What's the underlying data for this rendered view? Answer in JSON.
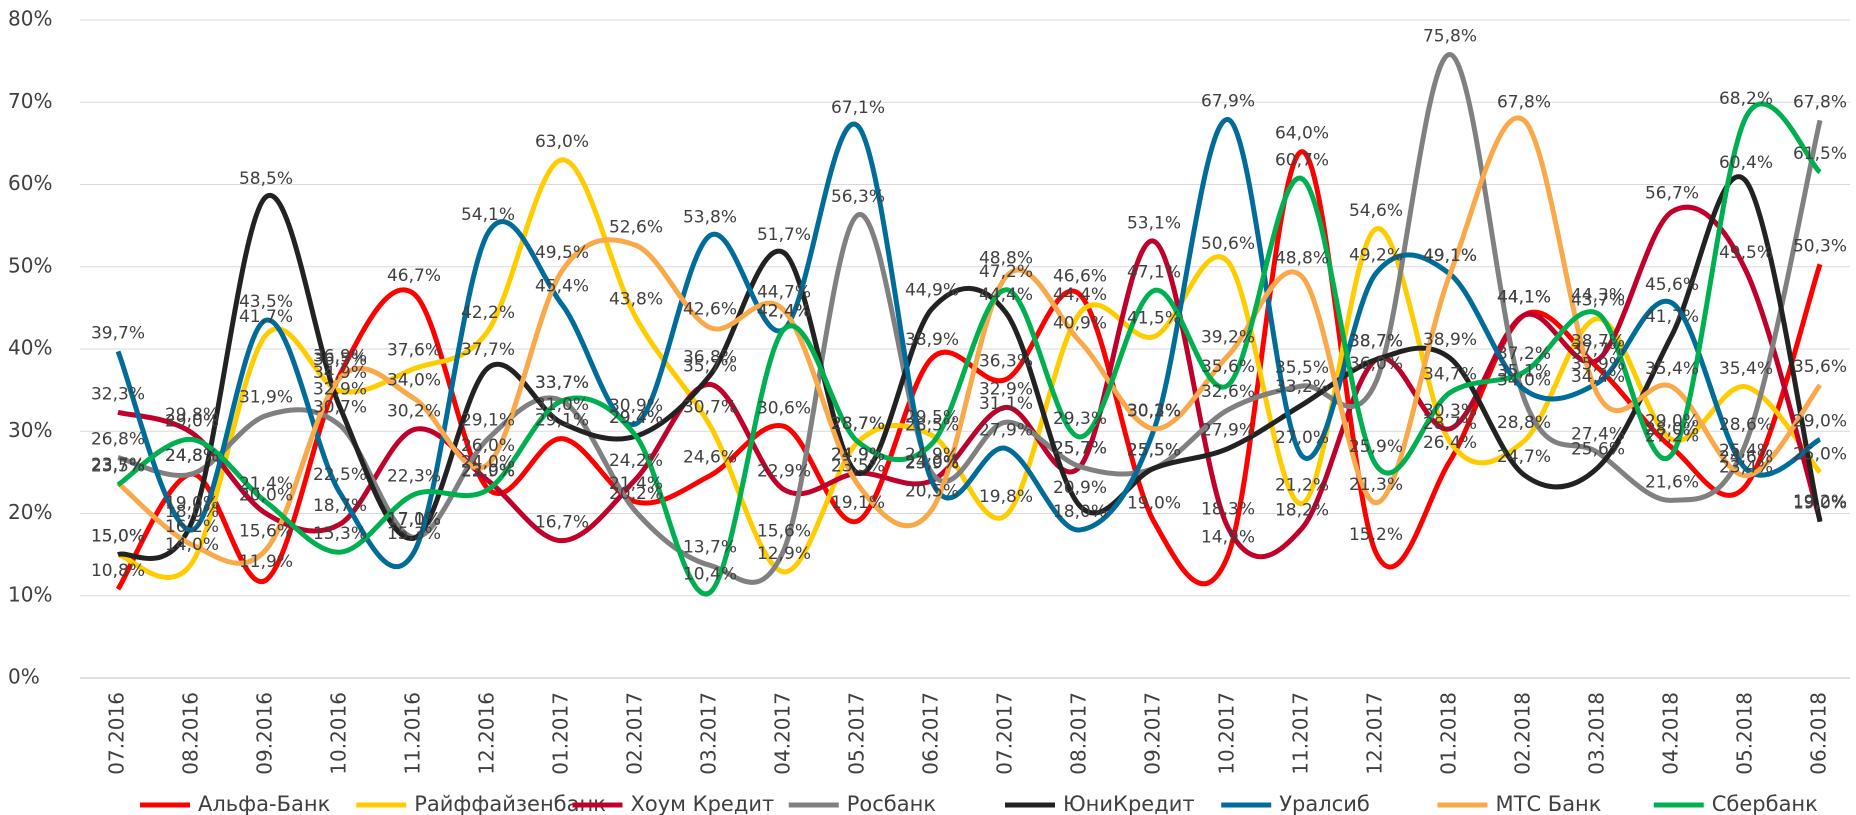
{
  "chart_data": {
    "type": "line",
    "categories": [
      "07.2016",
      "08.2016",
      "09.2016",
      "10.2016",
      "11.2016",
      "12.2016",
      "01.2017",
      "02.2017",
      "03.2017",
      "04.2017",
      "05.2017",
      "06.2017",
      "07.2017",
      "08.2017",
      "09.2017",
      "10.2017",
      "11.2017",
      "12.2017",
      "01.2018",
      "02.2018",
      "03.2018",
      "04.2018",
      "05.2018",
      "06.2018"
    ],
    "ylim": [
      0,
      80
    ],
    "yticks": [
      {
        "value": 0,
        "label": "0%"
      },
      {
        "value": 10,
        "label": "10%"
      },
      {
        "value": 20,
        "label": "20%"
      },
      {
        "value": 30,
        "label": "30%"
      },
      {
        "value": 40,
        "label": "40%"
      },
      {
        "value": 50,
        "label": "50%"
      },
      {
        "value": 60,
        "label": "60%"
      },
      {
        "value": 70,
        "label": "70%"
      },
      {
        "value": 80,
        "label": "80%"
      }
    ],
    "grid": true,
    "legend": "bottom",
    "series": [
      {
        "name": "Альфа-Банк",
        "color": "#ff0000",
        "values": [
          10.8,
          24.8,
          11.9,
          36.9,
          46.7,
          23.0,
          29.1,
          21.4,
          24.6,
          30.6,
          19.1,
          38.9,
          36.3,
          46.6,
          19.0,
          14.9,
          64.0,
          15.2,
          26.4,
          44.1,
          37.7,
          28.0,
          23.4,
          50.3
        ],
        "value_labels": [
          "10,8%",
          "24,8%",
          "11,9%",
          "36,9%",
          "46,7%",
          "23,0%",
          "29,1%",
          "21,4%",
          "24,6%",
          "30,6%",
          "19,1%",
          "38,9%",
          "36,3%",
          "46,6%",
          "19,0%",
          "14,9%",
          "64,0%",
          "15,2%",
          "26,4%",
          "44,1%",
          "37,7%",
          "28,0%",
          "23,4%",
          "50,3%"
        ]
      },
      {
        "name": "Райффайзенбанк",
        "color": "#ffcc00",
        "values": [
          15.0,
          14.0,
          41.7,
          34.9,
          37.6,
          42.2,
          63.0,
          43.8,
          30.7,
          12.9,
          28.7,
          29.5,
          19.8,
          44.4,
          41.5,
          50.6,
          21.2,
          54.6,
          28.7,
          28.8,
          43.7,
          29.0,
          35.4,
          25.0
        ],
        "value_labels": [
          "15,0%",
          "14,0%",
          "41,7%",
          "34,9%",
          "37,6%",
          "42,2%",
          "63,0%",
          "43,8%",
          "30,7%",
          "12,9%",
          "28,7%",
          "29,5%",
          "19,8%",
          "44,4%",
          "41,5%",
          "50,6%",
          "21,2%",
          "54,6%",
          "28,7%",
          "28,8%",
          "43,7%",
          "29,0%",
          "35,4%",
          "25,0%"
        ]
      },
      {
        "name": "Хоум Кредит",
        "color": "#c0002a",
        "values": [
          32.3,
          29.8,
          20.0,
          18.7,
          30.2,
          24.0,
          16.7,
          24.2,
          35.7,
          22.9,
          24.9,
          24.0,
          32.9,
          25.7,
          53.1,
          18.3,
          18.2,
          38.7,
          30.3,
          44.1,
          38.7,
          56.7,
          49.5,
          19.2
        ],
        "value_labels": [
          "32,3%",
          "29,8%",
          "20,0%",
          "18,7%",
          "30,2%",
          "24,0%",
          "16,7%",
          "24,2%",
          "35,7%",
          "22,9%",
          "24,9%",
          "24,0%",
          "32,9%",
          "25,7%",
          "53,1%",
          "18,3%",
          "18,2%",
          "38,7%",
          "30,3%",
          "44,1%",
          "38,7%",
          "56,7%",
          "49,5%",
          "19,2%"
        ]
      },
      {
        "name": "Росбанк",
        "color": "#808080",
        "values": [
          26.8,
          24.8,
          31.9,
          30.7,
          17.1,
          29.1,
          33.7,
          20.2,
          13.7,
          15.6,
          56.3,
          24.9,
          31.1,
          25.7,
          25.5,
          32.6,
          35.5,
          36.0,
          75.8,
          34.0,
          27.4,
          21.6,
          28.6,
          67.8
        ],
        "value_labels": [
          "26,8%",
          "24,8%",
          "31,9%",
          "30,7%",
          "17,1%",
          "29,1%",
          "33,7%",
          "20,2%",
          "13,7%",
          "15,6%",
          "56,3%",
          "24,9%",
          "31,1%",
          "25,7%",
          "25,5%",
          "32,6%",
          "35,5%",
          "36,0%",
          "75,8%",
          "34,0%",
          "27,4%",
          "21,6%",
          "28,6%",
          "67,8%"
        ]
      },
      {
        "name": "ЮниКредит",
        "color": "#222222",
        "values": [
          15.0,
          19.0,
          58.5,
          32.9,
          17.0,
          37.7,
          31.0,
          29.4,
          36.8,
          51.7,
          24.9,
          44.9,
          44.4,
          20.9,
          25.5,
          27.9,
          33.2,
          38.7,
          38.9,
          24.7,
          25.6,
          41.7,
          60.4,
          19.0
        ],
        "value_labels": [
          "15,0%",
          "19,0%",
          "58,5%",
          "32,9%",
          "17,0%",
          "37,7%",
          "31,0%",
          "29,4%",
          "36,8%",
          "51,7%",
          "24,9%",
          "44,9%",
          "44,4%",
          "20,9%",
          "25,5%",
          "27,9%",
          "33,2%",
          "38,7%",
          "38,9%",
          "24,7%",
          "25,6%",
          "41,7%",
          "60,4%",
          "19,0%"
        ]
      },
      {
        "name": "Уралсиб",
        "color": "#006c9a",
        "values": [
          39.7,
          18.0,
          43.5,
          22.5,
          15.3,
          54.1,
          45.4,
          30.9,
          53.8,
          42.4,
          67.1,
          23.9,
          27.9,
          18.0,
          30.2,
          67.9,
          27.0,
          49.2,
          49.1,
          35.1,
          35.9,
          45.6,
          25.4,
          29.0
        ],
        "value_labels": [
          "39,7%",
          "18,0%",
          "43,5%",
          "22,5%",
          "15,3%",
          "54,1%",
          "45,4%",
          "30,9%",
          "53,8%",
          "42,4%",
          "67,1%",
          "23,9%",
          "27,9%",
          "18,0%",
          "30,2%",
          "67,9%",
          "27,0%",
          "49,2%",
          "49,1%",
          "35,1%",
          "35,9%",
          "45,6%",
          "25,4%",
          "29,0%"
        ]
      },
      {
        "name": "МТС Банк",
        "color": "#f9a84a",
        "values": [
          23.7,
          16.2,
          15.6,
          36.5,
          34.0,
          26.0,
          49.5,
          52.6,
          42.6,
          44.7,
          23.5,
          20.5,
          48.8,
          40.9,
          30.3,
          39.2,
          48.8,
          21.3,
          49.1,
          67.8,
          34.4,
          35.4,
          24.6,
          35.6
        ],
        "value_labels": [
          "23,7%",
          "16,2%",
          "15,6%",
          "36,5%",
          "34,0%",
          "26,0%",
          "49,5%",
          "52,6%",
          "42,6%",
          "44,7%",
          "23,5%",
          "20,5%",
          "48,8%",
          "40,9%",
          "30,3%",
          "39,2%",
          "48,8%",
          "21,3%",
          "49,1%",
          "67,8%",
          "34,4%",
          "35,4%",
          "24,6%",
          "35,6%"
        ]
      },
      {
        "name": "Сбербанк",
        "color": "#00b050",
        "values": [
          23.5,
          29.0,
          21.4,
          15.3,
          22.3,
          22.9,
          33.7,
          29.4,
          10.4,
          42.4,
          28.7,
          28.5,
          47.2,
          29.3,
          47.1,
          35.6,
          60.7,
          25.9,
          34.7,
          37.2,
          44.3,
          27.2,
          68.2,
          61.5
        ],
        "value_labels": [
          "23,5%",
          "29,0%",
          "21,4%",
          "15,3%",
          "22,3%",
          "22,9%",
          "33,7%",
          "29,4%",
          "10,4%",
          "42,4%",
          "28,7%",
          "28,5%",
          "47,2%",
          "29,3%",
          "47,1%",
          "35,6%",
          "60,7%",
          "25,9%",
          "34,7%",
          "37,2%",
          "44,3%",
          "27,2%",
          "68,2%",
          "61,5%"
        ]
      }
    ]
  }
}
